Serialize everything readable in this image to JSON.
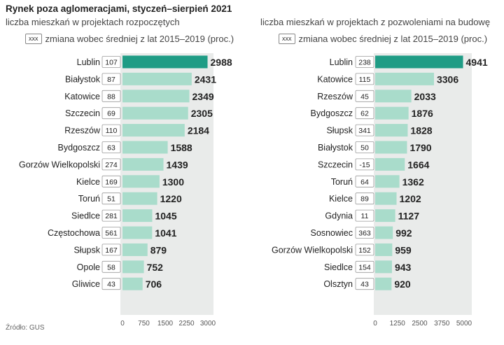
{
  "title": "Rynek poza aglomeracjami, styczeń–sierpień 2021",
  "source": "Źródło: GUS",
  "legend_box": "xxx",
  "colors": {
    "panel": "#e9ebea",
    "bar": "#a9dccb",
    "bar_highlight": "#1f9c85",
    "text": "#222222"
  },
  "chart_data": [
    {
      "type": "bar",
      "orientation": "horizontal",
      "subtitle": "liczba mieszkań w projektach rozpoczętych",
      "legend": "zmiana wobec średniej z lat 2015–2019 (proc.)",
      "categories": [
        "Lublin",
        "Białystok",
        "Katowice",
        "Szczecin",
        "Rzeszów",
        "Bydgoszcz",
        "Gorzów Wielkopolski",
        "Kielce",
        "Toruń",
        "Siedlce",
        "Częstochowa",
        "Słupsk",
        "Opole",
        "Gliwice"
      ],
      "values": [
        2988,
        2431,
        2349,
        2305,
        2184,
        1588,
        1439,
        1300,
        1220,
        1045,
        1041,
        879,
        752,
        706
      ],
      "change": [
        "107",
        "87",
        "88",
        "69",
        "110",
        "63",
        "274",
        "169",
        "51",
        "281",
        "561",
        "167",
        "58",
        "43"
      ],
      "xticks": [
        "0",
        "750",
        "1500",
        "2250",
        "3000"
      ],
      "xlim": [
        0,
        3000
      ]
    },
    {
      "type": "bar",
      "orientation": "horizontal",
      "subtitle": "liczba mieszkań w projektach z pozwoleniami na budowę",
      "legend": "zmiana wobec średniej z lat 2015–2019 (proc.)",
      "categories": [
        "Lublin",
        "Katowice",
        "Rzeszów",
        "Bydgoszcz",
        "Słupsk",
        "Białystok",
        "Szczecin",
        "Toruń",
        "Kielce",
        "Gdynia",
        "Sosnowiec",
        "Gorzów Wielkopolski",
        "Siedlce",
        "Olsztyn"
      ],
      "values": [
        4941,
        3306,
        2033,
        1876,
        1828,
        1790,
        1664,
        1362,
        1202,
        1127,
        992,
        959,
        943,
        920
      ],
      "change": [
        "238",
        "115",
        "45",
        "62",
        "341",
        "50",
        "-15",
        "64",
        "89",
        "11",
        "363",
        "152",
        "154",
        "43"
      ],
      "xticks": [
        "0",
        "1250",
        "2500",
        "3750",
        "5000"
      ],
      "xlim": [
        0,
        5000
      ]
    }
  ]
}
